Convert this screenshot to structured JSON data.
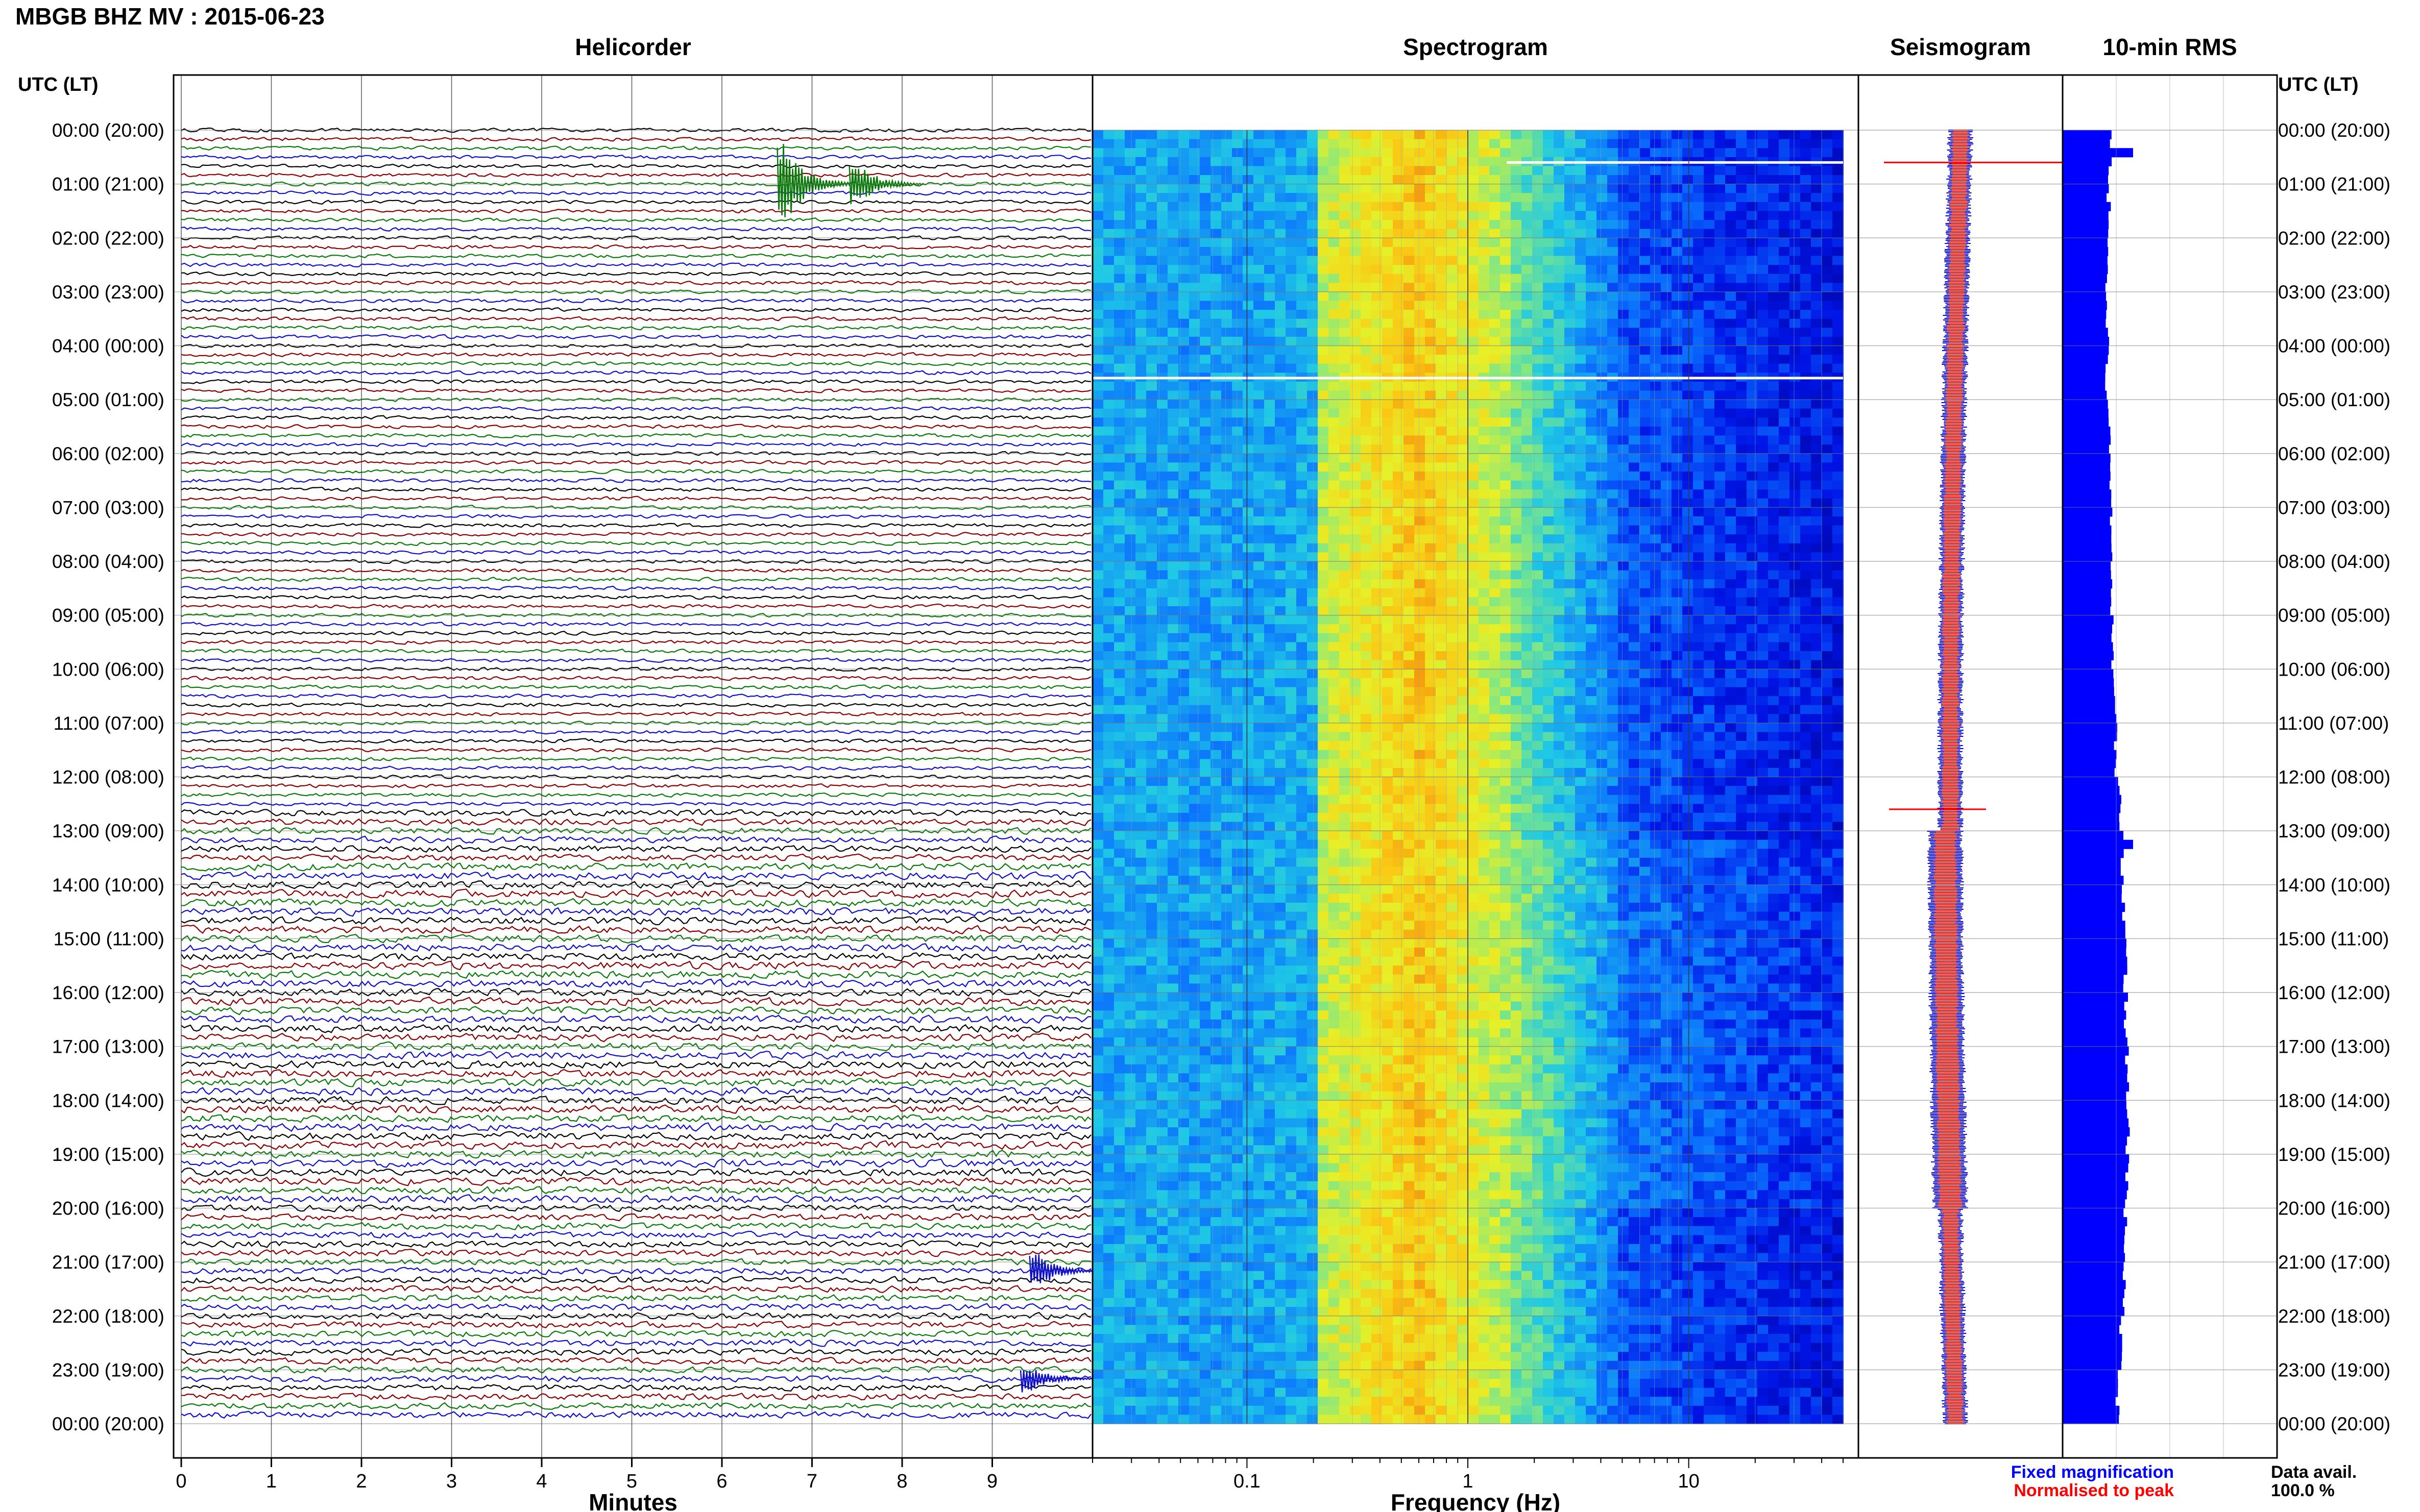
{
  "header": {
    "station_title": "MBGB BHZ MV : 2015-06-23"
  },
  "axes": {
    "left_label": "UTC (LT)",
    "right_label": "UTC (LT)"
  },
  "time_labels": [
    "00:00 (20:00)",
    "01:00 (21:00)",
    "02:00 (22:00)",
    "03:00 (23:00)",
    "04:00 (00:00)",
    "05:00 (01:00)",
    "06:00 (02:00)",
    "07:00 (03:00)",
    "08:00 (04:00)",
    "09:00 (05:00)",
    "10:00 (06:00)",
    "11:00 (07:00)",
    "12:00 (08:00)",
    "13:00 (09:00)",
    "14:00 (10:00)",
    "15:00 (11:00)",
    "16:00 (12:00)",
    "17:00 (13:00)",
    "18:00 (14:00)",
    "19:00 (15:00)",
    "20:00 (16:00)",
    "21:00 (17:00)",
    "22:00 (18:00)",
    "23:00 (19:00)",
    "00:00 (20:00)"
  ],
  "colors": {
    "trace_cycle": [
      "#000000",
      "#8b0000",
      "#0a7a0a",
      "#1010c8"
    ],
    "rms_bar": "#0000ff",
    "seismo_fixed": "#0000ff",
    "seismo_norm": "#ff0000"
  },
  "chart_data": [
    {
      "type": "line",
      "title": "Helicorder",
      "xlabel": "Minutes",
      "xlim": [
        0,
        10
      ],
      "xticks": [
        "0",
        "1",
        "2",
        "3",
        "4",
        "5",
        "6",
        "7",
        "8",
        "9"
      ],
      "rows": 144,
      "row_minutes": 10,
      "events": [
        {
          "row": 6,
          "minute": 6.7,
          "amplitude": 3.0
        },
        {
          "row": 6,
          "minute": 7.5,
          "amplitude": 1.5
        },
        {
          "row": 127,
          "minute": 9.5,
          "amplitude": 1.2
        },
        {
          "row": 139,
          "minute": 9.4,
          "amplitude": 1.0
        }
      ]
    },
    {
      "type": "heatmap",
      "title": "Spectrogram",
      "xlabel": "Frequency (Hz)",
      "x_scale": "log",
      "xlim": [
        0.02,
        50
      ],
      "xticks": [
        "0.1",
        "1",
        "10"
      ],
      "peak_band_hz": [
        0.2,
        1.0
      ],
      "gaps": [
        {
          "hour": 0.6,
          "fmin": 1.5,
          "fmax": 50
        },
        {
          "hour": 4.6,
          "fmin": 0.02,
          "fmax": 50
        }
      ]
    },
    {
      "type": "line",
      "title": "Seismogram",
      "legend": [
        "Fixed magnification",
        "Normalised to peak"
      ],
      "legend_position": "bottom"
    },
    {
      "type": "bar",
      "title": "10-min RMS",
      "orientation": "horizontal",
      "values_hourly": [
        0.62,
        0.6,
        0.58,
        0.59,
        0.58,
        0.6,
        0.61,
        0.63,
        0.64,
        0.66,
        0.68,
        0.7,
        0.75,
        0.78,
        0.8,
        0.82,
        0.83,
        0.84,
        0.85,
        0.84,
        0.82,
        0.8,
        0.76,
        0.72
      ],
      "spikes": [
        {
          "row": 2,
          "value": 0.92
        },
        {
          "row": 79,
          "value": 0.92
        }
      ],
      "footer": {
        "availability_label": "Data avail.",
        "availability_value": "100.0 %"
      }
    }
  ]
}
